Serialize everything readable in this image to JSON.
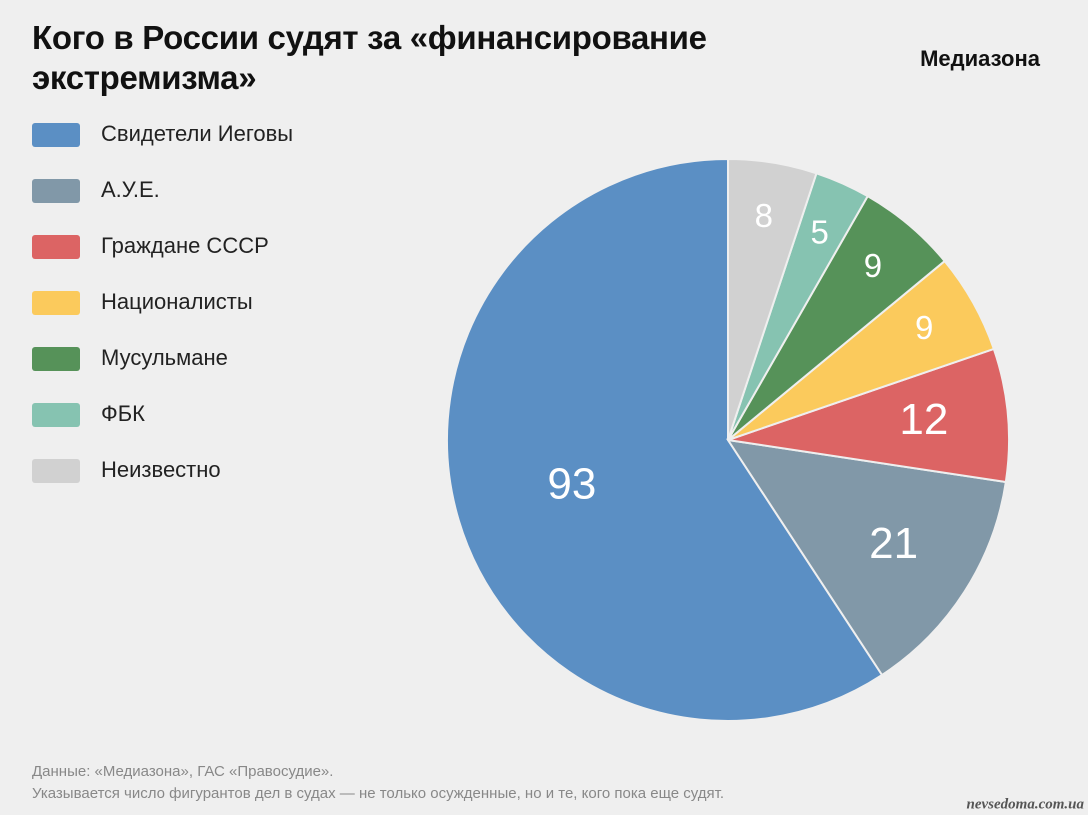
{
  "chart_data": {
    "type": "pie",
    "title": "Кого в России судят за «финансирование экстремизма»",
    "brand": "Медиазона",
    "categories": [
      "Свидетели Иеговы",
      "А.У.Е.",
      "Граждане СССР",
      "Националисты",
      "Мусульмане",
      "ФБК",
      "Неизвестно"
    ],
    "values": [
      93,
      21,
      12,
      9,
      9,
      5,
      8
    ],
    "colors": [
      "#5b8fc4",
      "#8198a8",
      "#dc6464",
      "#fbca5c",
      "#569259",
      "#86c3b1",
      "#d1d1d1"
    ],
    "legend": "left",
    "source": "Данные: «Медиазона», ГАС «Правосудие».",
    "note": "Указывается число фигурантов дел в судах — не только осужденные, но и те, кого пока еще судят.",
    "watermark": "nevsedoma.com.ua"
  }
}
